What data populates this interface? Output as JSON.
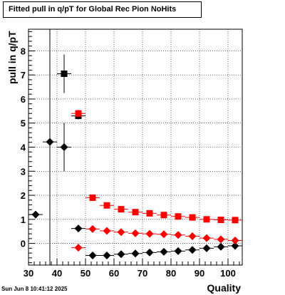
{
  "title": "Fitted pull in q/pT for Global Rec Pion NoHits",
  "footer_date": "Sun Jun  8 10:41:12 2025",
  "chart_data": {
    "type": "scatter",
    "title": "Fitted pull in q/pT for Global Rec Pion NoHits",
    "xlabel": "Quality",
    "ylabel": "pull in q/pT",
    "xlim": [
      30,
      105
    ],
    "ylim": [
      -0.9,
      8.9
    ],
    "xticks": [
      30,
      40,
      50,
      60,
      70,
      80,
      90,
      100
    ],
    "yticks": [
      0,
      1,
      2,
      3,
      4,
      5,
      6,
      7,
      8
    ],
    "grid": true,
    "series": [
      {
        "marker": "square",
        "color": "#000000",
        "x": [
          42.5,
          47.5
        ],
        "y": [
          7.05,
          5.3
        ],
        "yerr": [
          0.8,
          0.15
        ]
      },
      {
        "marker": "square",
        "color": "#ff0000",
        "x": [
          47.5,
          52.5,
          57.5,
          62.5,
          67.5,
          72.5,
          77.5,
          82.5,
          87.5,
          92.5,
          97.5,
          102.5
        ],
        "y": [
          5.4,
          1.9,
          1.58,
          1.42,
          1.3,
          1.25,
          1.18,
          1.12,
          1.08,
          1.0,
          0.98,
          0.97
        ],
        "yerr": [
          0.15,
          0.07,
          0.05,
          0.04,
          0.03,
          0.03,
          0.03,
          0.03,
          0.03,
          0.03,
          0.03,
          0.03
        ]
      },
      {
        "marker": "diamond",
        "color": "#000000",
        "x": [
          32.5,
          37.5,
          42.5,
          47.5,
          52.5,
          57.5,
          62.5,
          67.5,
          72.5,
          77.5,
          82.5,
          87.5,
          92.5,
          97.5,
          102.5
        ],
        "y": [
          1.2,
          4.22,
          4.0,
          0.62,
          -0.5,
          -0.5,
          -0.45,
          -0.42,
          -0.38,
          -0.35,
          -0.32,
          -0.27,
          -0.2,
          -0.14,
          -0.1
        ],
        "yerr": [
          0.0,
          10.0,
          1.0,
          0.05,
          0.04,
          0.04,
          0.04,
          0.03,
          0.03,
          0.03,
          0.03,
          0.03,
          0.03,
          0.03,
          0.03
        ]
      },
      {
        "marker": "diamond",
        "color": "#ff0000",
        "x": [
          47.5,
          52.5,
          57.5,
          62.5,
          67.5,
          72.5,
          77.5,
          82.5,
          87.5,
          92.5,
          97.5,
          102.5
        ],
        "y": [
          -0.18,
          0.6,
          0.52,
          0.47,
          0.42,
          0.4,
          0.38,
          0.35,
          0.3,
          0.22,
          0.17,
          0.12
        ],
        "yerr": [
          0.08,
          0.04,
          0.03,
          0.03,
          0.03,
          0.03,
          0.03,
          0.03,
          0.03,
          0.03,
          0.03,
          0.03
        ]
      }
    ]
  }
}
